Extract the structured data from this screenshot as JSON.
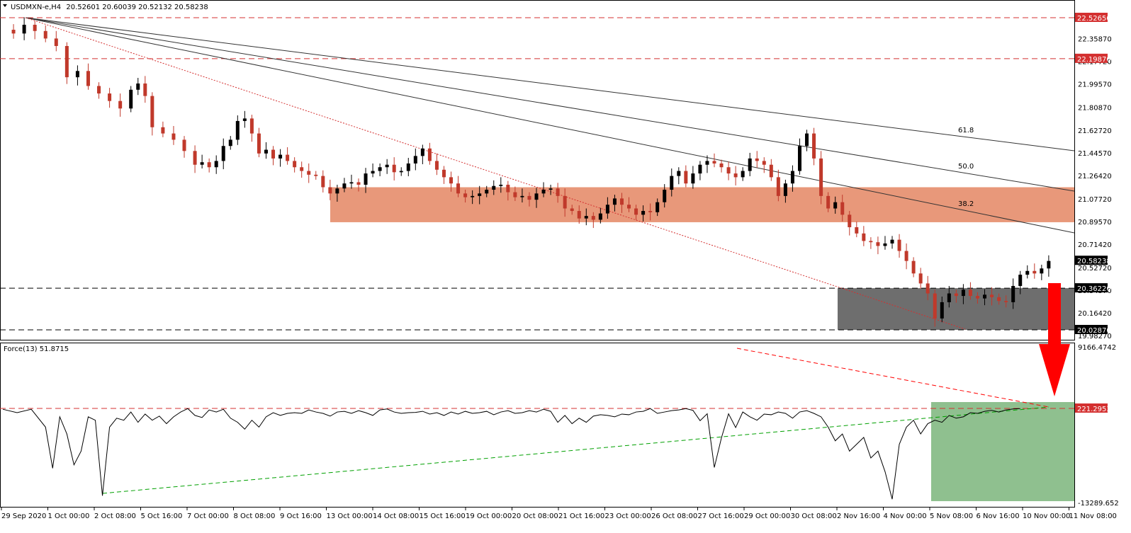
{
  "header": {
    "symbol": "USDMXN-e,H4",
    "ohlc": "20.52601 20.60039 20.52132 20.58238"
  },
  "indicator": {
    "title": "Force(13) 51.8715"
  },
  "colors": {
    "bull": "#000000",
    "bear": "#c0392b",
    "resistance_zone": "#e8987a",
    "support_zone": "#6e6e6e",
    "indicator_zone": "#8fc08f",
    "arrow": "#ff0000"
  },
  "chart_data": [
    {
      "type": "candlestick",
      "title": "USDMXN-e,H4",
      "y_axis_ticks": [
        "22.35870",
        "22.17720",
        "21.99570",
        "21.80870",
        "21.62720",
        "21.44570",
        "21.26420",
        "21.07720",
        "20.89570",
        "20.71420",
        "20.52720",
        "20.34570",
        "20.16420",
        "19.98270"
      ],
      "x_axis_ticks": [
        "29 Sep 2020",
        "1 Oct 00:00",
        "2 Oct 08:00",
        "5 Oct 16:00",
        "7 Oct 00:00",
        "8 Oct 08:00",
        "9 Oct 16:00",
        "13 Oct 00:00",
        "14 Oct 08:00",
        "15 Oct 16:00",
        "19 Oct 00:00",
        "20 Oct 08:00",
        "21 Oct 16:00",
        "23 Oct 00:00",
        "26 Oct 08:00",
        "27 Oct 16:00",
        "29 Oct 00:00",
        "30 Oct 08:00",
        "2 Nov 16:00",
        "4 Nov 00:00",
        "5 Nov 08:00",
        "6 Nov 16:00",
        "10 Nov 00:00",
        "11 Nov 08:00"
      ],
      "price_labels": {
        "top_resistance": "22.52650",
        "upper_resistance": "22.19870",
        "current": "20.58238",
        "support_top": "20.36220",
        "support_bottom": "20.02870"
      },
      "fibonacci_labels": [
        "61.8",
        "50.0",
        "38.2"
      ],
      "resistance_zone": [
        20.89,
        21.17
      ],
      "support_zone": [
        20.0287,
        20.3622
      ],
      "close_path": [
        [
          0,
          22.43
        ],
        [
          3,
          22.4
        ],
        [
          6,
          22.47
        ],
        [
          9,
          22.42
        ],
        [
          12,
          22.36
        ],
        [
          15,
          22.3
        ],
        [
          18,
          22.05
        ],
        [
          21,
          22.1
        ],
        [
          24,
          21.98
        ],
        [
          27,
          21.92
        ],
        [
          30,
          21.86
        ],
        [
          33,
          21.8
        ],
        [
          36,
          21.95
        ],
        [
          38,
          22.0
        ],
        [
          40,
          21.9
        ],
        [
          42,
          21.65
        ],
        [
          45,
          21.6
        ],
        [
          48,
          21.55
        ],
        [
          51,
          21.46
        ],
        [
          54,
          21.35
        ],
        [
          56,
          21.37
        ],
        [
          58,
          21.33
        ],
        [
          60,
          21.38
        ],
        [
          62,
          21.5
        ],
        [
          64,
          21.55
        ],
        [
          66,
          21.7
        ],
        [
          68,
          21.72
        ],
        [
          70,
          21.6
        ],
        [
          72,
          21.44
        ],
        [
          74,
          21.47
        ],
        [
          76,
          21.4
        ],
        [
          78,
          21.43
        ],
        [
          80,
          21.38
        ],
        [
          82,
          21.33
        ],
        [
          84,
          21.3
        ],
        [
          86,
          21.27
        ],
        [
          88,
          21.26
        ],
        [
          90,
          21.17
        ],
        [
          92,
          21.12
        ],
        [
          94,
          21.16
        ],
        [
          96,
          21.2
        ],
        [
          98,
          21.21
        ],
        [
          100,
          21.19
        ],
        [
          102,
          21.28
        ],
        [
          104,
          21.3
        ],
        [
          106,
          21.33
        ],
        [
          108,
          21.35
        ],
        [
          110,
          21.29
        ],
        [
          112,
          21.3
        ],
        [
          114,
          21.36
        ],
        [
          116,
          21.42
        ],
        [
          118,
          21.48
        ],
        [
          120,
          21.38
        ],
        [
          122,
          21.31
        ],
        [
          124,
          21.25
        ],
        [
          126,
          21.2
        ],
        [
          128,
          21.12
        ],
        [
          130,
          21.09
        ],
        [
          132,
          21.1
        ],
        [
          134,
          21.12
        ],
        [
          136,
          21.15
        ],
        [
          138,
          21.18
        ],
        [
          140,
          21.19
        ],
        [
          142,
          21.13
        ],
        [
          144,
          21.09
        ],
        [
          146,
          21.1
        ],
        [
          148,
          21.07
        ],
        [
          150,
          21.12
        ],
        [
          152,
          21.15
        ],
        [
          154,
          21.16
        ],
        [
          156,
          21.1
        ],
        [
          158,
          21.0
        ],
        [
          160,
          20.98
        ],
        [
          162,
          20.92
        ],
        [
          164,
          20.94
        ],
        [
          166,
          20.91
        ],
        [
          168,
          20.96
        ],
        [
          170,
          21.03
        ],
        [
          172,
          21.08
        ],
        [
          174,
          21.03
        ],
        [
          176,
          21.0
        ],
        [
          178,
          20.95
        ],
        [
          180,
          20.98
        ],
        [
          182,
          20.97
        ],
        [
          184,
          21.05
        ],
        [
          186,
          21.15
        ],
        [
          188,
          21.26
        ],
        [
          190,
          21.3
        ],
        [
          192,
          21.2
        ],
        [
          194,
          21.28
        ],
        [
          196,
          21.35
        ],
        [
          198,
          21.38
        ],
        [
          200,
          21.36
        ],
        [
          202,
          21.33
        ],
        [
          204,
          21.28
        ],
        [
          206,
          21.25
        ],
        [
          208,
          21.3
        ],
        [
          210,
          21.4
        ],
        [
          212,
          21.38
        ],
        [
          214,
          21.35
        ],
        [
          216,
          21.25
        ],
        [
          218,
          21.1
        ],
        [
          220,
          21.2
        ],
        [
          222,
          21.3
        ],
        [
          224,
          21.5
        ],
        [
          226,
          21.6
        ],
        [
          228,
          21.4
        ],
        [
          230,
          21.1
        ],
        [
          232,
          21.0
        ],
        [
          234,
          21.05
        ],
        [
          236,
          20.95
        ],
        [
          238,
          20.85
        ],
        [
          240,
          20.8
        ],
        [
          242,
          20.74
        ],
        [
          244,
          20.73
        ],
        [
          246,
          20.7
        ],
        [
          248,
          20.72
        ],
        [
          250,
          20.75
        ],
        [
          252,
          20.66
        ],
        [
          254,
          20.58
        ],
        [
          256,
          20.48
        ],
        [
          258,
          20.4
        ],
        [
          260,
          20.32
        ],
        [
          262,
          20.12
        ],
        [
          264,
          20.25
        ],
        [
          266,
          20.32
        ],
        [
          268,
          20.3
        ],
        [
          270,
          20.35
        ],
        [
          272,
          20.3
        ],
        [
          274,
          20.28
        ],
        [
          276,
          20.31
        ],
        [
          278,
          20.29
        ],
        [
          280,
          20.26
        ],
        [
          282,
          20.25
        ],
        [
          284,
          20.38
        ],
        [
          286,
          20.47
        ],
        [
          288,
          20.5
        ],
        [
          290,
          20.48
        ],
        [
          292,
          20.52
        ],
        [
          294,
          20.58
        ]
      ]
    },
    {
      "type": "line",
      "title": "Force(13) 51.8715",
      "y_axis_ticks": [
        "9166.4742",
        "221.2953",
        "-13289.652"
      ],
      "level_label": "221.2953",
      "zone": [
        -13289.652,
        221.2953
      ],
      "series": [
        {
          "values": [
            [
              0,
              100
            ],
            [
              4,
              -400
            ],
            [
              8,
              100
            ],
            [
              12,
              -2500
            ],
            [
              14,
              -8500
            ],
            [
              16,
              -1000
            ],
            [
              18,
              -3500
            ],
            [
              20,
              -8000
            ],
            [
              22,
              -6000
            ],
            [
              24,
              -1000
            ],
            [
              26,
              -1500
            ],
            [
              28,
              -12500
            ],
            [
              30,
              -2500
            ],
            [
              32,
              -1200
            ],
            [
              34,
              -1500
            ],
            [
              36,
              -300
            ],
            [
              38,
              -1800
            ],
            [
              40,
              -600
            ],
            [
              42,
              -1500
            ],
            [
              44,
              -900
            ],
            [
              46,
              -2000
            ],
            [
              48,
              -1000
            ],
            [
              50,
              -300
            ],
            [
              52,
              200
            ],
            [
              54,
              -800
            ],
            [
              56,
              -1100
            ],
            [
              58,
              0
            ],
            [
              60,
              -300
            ],
            [
              62,
              100
            ],
            [
              64,
              -1200
            ],
            [
              66,
              -1800
            ],
            [
              68,
              -2800
            ],
            [
              70,
              -1500
            ],
            [
              72,
              -2500
            ],
            [
              74,
              -1000
            ],
            [
              76,
              -400
            ],
            [
              78,
              -800
            ],
            [
              80,
              -500
            ],
            [
              82,
              -400
            ],
            [
              84,
              -500
            ],
            [
              86,
              0
            ],
            [
              88,
              -300
            ],
            [
              90,
              -500
            ],
            [
              92,
              -900
            ],
            [
              94,
              -300
            ],
            [
              96,
              -200
            ],
            [
              98,
              -500
            ],
            [
              100,
              -100
            ],
            [
              102,
              -400
            ],
            [
              104,
              -800
            ],
            [
              106,
              0
            ],
            [
              108,
              300
            ],
            [
              110,
              -300
            ],
            [
              112,
              -500
            ],
            [
              114,
              -400
            ],
            [
              116,
              800
            ],
            [
              118,
              -200
            ],
            [
              120,
              -600
            ],
            [
              122,
              -400
            ],
            [
              124,
              -800
            ],
            [
              126,
              -300
            ],
            [
              128,
              -600
            ],
            [
              130,
              -200
            ],
            [
              132,
              -500
            ],
            [
              134,
              -400
            ],
            [
              136,
              -200
            ],
            [
              138,
              -700
            ],
            [
              140,
              -300
            ],
            [
              142,
              -100
            ],
            [
              144,
              -500
            ],
            [
              146,
              -400
            ],
            [
              148,
              -100
            ],
            [
              150,
              -300
            ],
            [
              152,
              100
            ],
            [
              154,
              -200
            ],
            [
              156,
              -1800
            ],
            [
              158,
              -800
            ],
            [
              160,
              -2000
            ],
            [
              162,
              -1200
            ],
            [
              164,
              -1800
            ],
            [
              166,
              -900
            ],
            [
              168,
              -700
            ],
            [
              170,
              -800
            ],
            [
              172,
              -1000
            ],
            [
              174,
              -600
            ],
            [
              176,
              -700
            ],
            [
              178,
              -300
            ],
            [
              180,
              -200
            ],
            [
              182,
              200
            ],
            [
              184,
              -500
            ],
            [
              186,
              -300
            ],
            [
              188,
              -100
            ],
            [
              190,
              0
            ],
            [
              192,
              200
            ],
            [
              194,
              500
            ],
            [
              196,
              2000
            ],
            [
              198,
              1000
            ],
            [
              200,
              8800
            ],
            [
              202,
              4500
            ],
            [
              204,
              1000
            ],
            [
              206,
              3000
            ],
            [
              208,
              -300
            ],
            [
              210,
              -1000
            ],
            [
              212,
              -1500
            ],
            [
              214,
              -600
            ],
            [
              216,
              -700
            ],
            [
              218,
              -300
            ],
            [
              220,
              -500
            ],
            [
              222,
              -1200
            ],
            [
              224,
              -300
            ],
            [
              226,
              -100
            ],
            [
              228,
              -500
            ],
            [
              230,
              -1000
            ],
            [
              232,
              -2500
            ],
            [
              234,
              -4500
            ],
            [
              236,
              -3500
            ],
            [
              238,
              -6000
            ],
            [
              240,
              -5000
            ],
            [
              242,
              -4000
            ],
            [
              244,
              -7000
            ],
            [
              246,
              -6000
            ],
            [
              248,
              -9000
            ],
            [
              250,
              -13000
            ],
            [
              252,
              -5000
            ],
            [
              254,
              -2500
            ],
            [
              256,
              -1500
            ],
            [
              258,
              -3500
            ],
            [
              260,
              -2000
            ],
            [
              262,
              -1500
            ],
            [
              264,
              -1800
            ],
            [
              266,
              -800
            ],
            [
              268,
              -1200
            ],
            [
              270,
              -1000
            ],
            [
              272,
              -400
            ],
            [
              274,
              -500
            ],
            [
              276,
              -200
            ],
            [
              278,
              500
            ],
            [
              280,
              -300
            ],
            [
              282,
              0
            ],
            [
              284,
              300
            ],
            [
              286,
              200
            ]
          ]
        }
      ]
    }
  ]
}
